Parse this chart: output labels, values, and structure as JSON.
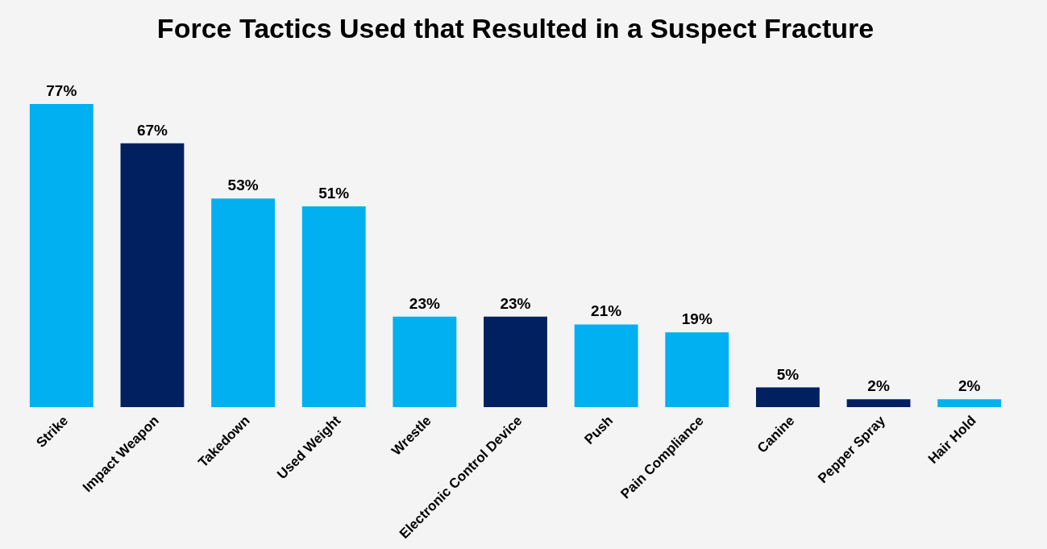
{
  "chart_data": {
    "type": "bar",
    "title": "Force Tactics Used that Resulted in a Suspect Fracture",
    "categories": [
      "Strike",
      "Impact Weapon",
      "Takedown",
      "Used Weight",
      "Wrestle",
      "Electronic Control Device",
      "Push",
      "Pain Compliance",
      "Canine",
      "Pepper Spray",
      "Hair Hold"
    ],
    "values": [
      77,
      67,
      53,
      51,
      23,
      23,
      21,
      19,
      5,
      2,
      2
    ],
    "value_labels": [
      "77%",
      "67%",
      "53%",
      "51%",
      "23%",
      "23%",
      "21%",
      "19%",
      "5%",
      "2%",
      "2%"
    ],
    "colors": [
      "#00b0f0",
      "#002060",
      "#00b0f0",
      "#00b0f0",
      "#00b0f0",
      "#002060",
      "#00b0f0",
      "#00b0f0",
      "#002060",
      "#002060",
      "#00b0f0"
    ],
    "grid": false
  }
}
